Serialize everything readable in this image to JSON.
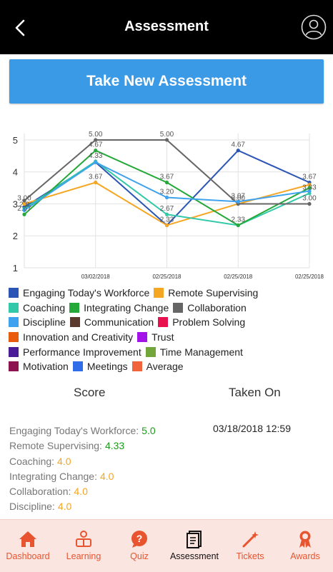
{
  "header": {
    "title": "Assessment",
    "back_icon": "chevron-left-icon",
    "profile_icon": "user-circle-icon"
  },
  "cta": {
    "label": "Take New Assessment"
  },
  "chart_data": {
    "type": "line",
    "ylim": [
      1,
      5.2
    ],
    "yticks": [
      "1",
      "2",
      "3",
      "4",
      "5"
    ],
    "x_labels": [
      "",
      "03/02/2018",
      "02/25/2018",
      "02/25/2018",
      "02/25/2018"
    ],
    "series": [
      {
        "name": "Engaging Today's Workforce",
        "color": "#2a55b5",
        "values": [
          2.9,
          4.3,
          2.33,
          4.67,
          3.67
        ]
      },
      {
        "name": "Remote Supervising",
        "color": "#f5a623",
        "values": [
          3.0,
          3.67,
          2.33,
          3.0,
          3.6
        ]
      },
      {
        "name": "Coaching",
        "color": "#32c8a8",
        "values": [
          2.85,
          4.33,
          2.67,
          2.33,
          3.33
        ]
      },
      {
        "name": "Integrating Change",
        "color": "#25a83a",
        "values": [
          2.67,
          4.67,
          3.67,
          2.33,
          3.5
        ]
      },
      {
        "name": "Collaboration",
        "color": "#666666",
        "values": [
          3.1,
          5.0,
          5.0,
          3.0,
          3.0
        ]
      },
      {
        "name": "Discipline",
        "color": "#3ea2ee",
        "values": [
          2.8,
          4.3,
          3.2,
          3.07,
          3.4
        ]
      }
    ],
    "data_labels": [
      {
        "text": "3.00",
        "series": 1,
        "point": 0
      },
      {
        "text": "2.67",
        "series": 3,
        "point": 0
      },
      {
        "text": "2.8",
        "series": 5,
        "point": 0
      },
      {
        "text": "5.00",
        "series": 4,
        "point": 1
      },
      {
        "text": "4.67",
        "series": 3,
        "point": 1
      },
      {
        "text": "4.33",
        "series": 2,
        "point": 1
      },
      {
        "text": "3.67",
        "series": 1,
        "point": 1
      },
      {
        "text": "5.00",
        "series": 4,
        "point": 2
      },
      {
        "text": "3.67",
        "series": 3,
        "point": 2
      },
      {
        "text": "3.20",
        "series": 5,
        "point": 2
      },
      {
        "text": "2.67",
        "series": 2,
        "point": 2
      },
      {
        "text": "2.33",
        "series": 1,
        "point": 2
      },
      {
        "text": "4.67",
        "series": 0,
        "point": 3
      },
      {
        "text": "3.07",
        "series": 5,
        "point": 3
      },
      {
        "text": "3.00",
        "series": 4,
        "point": 3
      },
      {
        "text": "2.33",
        "series": 3,
        "point": 3
      },
      {
        "text": "3.67",
        "series": 0,
        "point": 4
      },
      {
        "text": "3.33",
        "series": 2,
        "point": 4
      },
      {
        "text": "3.00",
        "series": 4,
        "point": 4
      }
    ]
  },
  "legend": [
    [
      {
        "label": "Engaging Today's Workforce",
        "color": "#2a55b5"
      },
      {
        "label": "Remote Supervising",
        "color": "#f5a623"
      }
    ],
    [
      {
        "label": "Coaching",
        "color": "#32c8a8"
      },
      {
        "label": "Integrating Change",
        "color": "#25a83a"
      },
      {
        "label": "Collaboration",
        "color": "#666666"
      }
    ],
    [
      {
        "label": "Discipline",
        "color": "#3ea2ee"
      },
      {
        "label": "Communication",
        "color": "#5b3a2e"
      },
      {
        "label": "Problem Solving",
        "color": "#e8114f"
      }
    ],
    [
      {
        "label": "Innovation and Creativity",
        "color": "#e85a0c"
      },
      {
        "label": "Trust",
        "color": "#a414e8"
      }
    ],
    [
      {
        "label": "Performance Improvement",
        "color": "#4a1c96"
      },
      {
        "label": "Time Management",
        "color": "#72a63a"
      }
    ],
    [
      {
        "label": "Motivation",
        "color": "#8c1450"
      },
      {
        "label": "Meetings",
        "color": "#2f6ee8"
      },
      {
        "label": "Average",
        "color": "#f0643c"
      }
    ]
  ],
  "section": {
    "score_header": "Score",
    "taken_header": "Taken On"
  },
  "scores": [
    {
      "label": "Engaging Today's Workforce:",
      "value": "5.0",
      "color": "#1b9a1b"
    },
    {
      "label": "Remote Supervising:",
      "value": "4.33",
      "color": "#1b9a1b"
    },
    {
      "label": "Coaching:",
      "value": "4.0",
      "color": "#f5a623"
    },
    {
      "label": "Integrating Change:",
      "value": "4.0",
      "color": "#f5a623"
    },
    {
      "label": "Collaboration:",
      "value": "4.0",
      "color": "#f5a623"
    },
    {
      "label": "Discipline:",
      "value": "4.0",
      "color": "#f5a623"
    }
  ],
  "taken_on": "03/18/2018 12:59",
  "tabs": [
    {
      "label": "Dashboard",
      "icon": "home-icon",
      "active": false
    },
    {
      "label": "Learning",
      "icon": "learning-icon",
      "active": false
    },
    {
      "label": "Quiz",
      "icon": "question-bubble-icon",
      "active": false
    },
    {
      "label": "Assessment",
      "icon": "assessment-doc-icon",
      "active": true
    },
    {
      "label": "Tickets",
      "icon": "magic-wand-icon",
      "active": false
    },
    {
      "label": "Awards",
      "icon": "award-ribbon-icon",
      "active": false
    }
  ]
}
